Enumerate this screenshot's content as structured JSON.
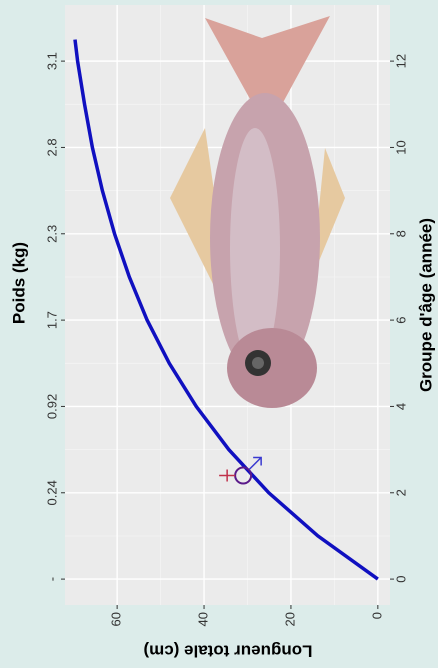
{
  "chart_data": {
    "type": "line",
    "x_label": "Groupe d'âge (année)",
    "y_label": "Longueur totale (cm)",
    "x2_label": "Poids (kg)",
    "x": [
      0,
      1,
      2,
      3,
      4,
      5,
      6,
      7,
      8,
      9,
      10,
      11,
      12,
      12.5
    ],
    "values": [
      0,
      13.8,
      25.1,
      34.3,
      41.8,
      48.0,
      53.1,
      57.2,
      60.6,
      63.4,
      65.7,
      67.5,
      69.1,
      69.7
    ],
    "color": "#1010c0",
    "xlim": [
      -0.6,
      13.3
    ],
    "xticks": [
      0,
      2,
      4,
      6,
      8,
      10,
      12
    ],
    "ylim": [
      -2.8,
      72
    ],
    "yticks": [
      0,
      20,
      40,
      60
    ],
    "top_axis": {
      "ages": [
        0,
        2,
        4,
        6,
        8,
        10,
        12
      ],
      "labels": [
        "-",
        "0.24",
        "0.92",
        "1.7",
        "2.3",
        "2.8",
        "3.1"
      ]
    },
    "grid": true
  }
}
